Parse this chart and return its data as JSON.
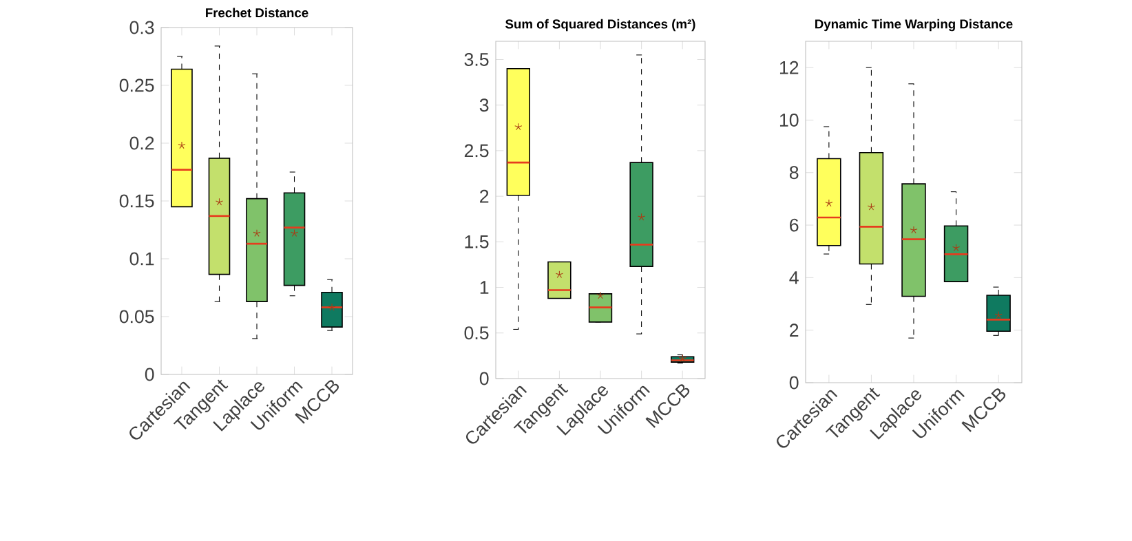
{
  "chart_data": [
    {
      "type": "box",
      "title": "Frechet Distance",
      "categories": [
        "Cartesian",
        "Tangent",
        "Laplace",
        "Uniform",
        "MCCB"
      ],
      "colors": [
        "#ffff5c",
        "#c3e06c",
        "#80c26a",
        "#3d9c62",
        "#0f7a60"
      ],
      "marker": "star",
      "ylim": [
        0,
        0.3
      ],
      "yticks": [
        0,
        0.05,
        0.1,
        0.15,
        0.2,
        0.25,
        0.3
      ],
      "boxes": [
        {
          "low": 0.145,
          "q1": 0.145,
          "median": 0.177,
          "q3": 0.264,
          "high": 0.275,
          "mean": 0.198
        },
        {
          "low": 0.063,
          "q1": 0.0865,
          "median": 0.137,
          "q3": 0.187,
          "high": 0.284,
          "mean": 0.149
        },
        {
          "low": 0.031,
          "q1": 0.063,
          "median": 0.113,
          "q3": 0.152,
          "high": 0.26,
          "mean": 0.122
        },
        {
          "low": 0.068,
          "q1": 0.077,
          "median": 0.127,
          "q3": 0.157,
          "high": 0.175,
          "mean": 0.122
        },
        {
          "low": 0.038,
          "q1": 0.041,
          "median": 0.058,
          "q3": 0.071,
          "high": 0.082,
          "mean": 0.058
        }
      ]
    },
    {
      "type": "box",
      "title": "Sum of Squared Distances (m²)",
      "categories": [
        "Cartesian",
        "Tangent",
        "Laplace",
        "Uniform",
        "MCCB"
      ],
      "colors": [
        "#ffff5c",
        "#c3e06c",
        "#80c26a",
        "#3d9c62",
        "#0f7a60"
      ],
      "marker": "star",
      "ylim": [
        0,
        3.7
      ],
      "yticks": [
        0,
        0.5,
        1,
        1.5,
        2,
        2.5,
        3,
        3.5
      ],
      "boxes": [
        {
          "low": 0.54,
          "q1": 2.01,
          "median": 2.37,
          "q3": 3.4,
          "high": 3.4,
          "mean": 2.76
        },
        {
          "low": 0.88,
          "q1": 0.88,
          "median": 0.97,
          "q3": 1.28,
          "high": 1.28,
          "mean": 1.14
        },
        {
          "low": 0.62,
          "q1": 0.62,
          "median": 0.78,
          "q3": 0.93,
          "high": 0.93,
          "mean": 0.91
        },
        {
          "low": 0.49,
          "q1": 1.23,
          "median": 1.47,
          "q3": 2.37,
          "high": 3.55,
          "mean": 1.77
        },
        {
          "low": 0.17,
          "q1": 0.18,
          "median": 0.2,
          "q3": 0.24,
          "high": 0.26,
          "mean": 0.22
        }
      ]
    },
    {
      "type": "box",
      "title": "Dynamic Time Warping Distance",
      "categories": [
        "Cartesian",
        "Tangent",
        "Laplace",
        "Uniform",
        "MCCB"
      ],
      "colors": [
        "#ffff5c",
        "#c3e06c",
        "#80c26a",
        "#3d9c62",
        "#0f7a60"
      ],
      "marker": "star",
      "ylim": [
        0,
        13
      ],
      "yticks": [
        0,
        2,
        4,
        6,
        8,
        10,
        12
      ],
      "boxes": [
        {
          "low": 4.9,
          "q1": 5.22,
          "median": 6.29,
          "q3": 8.53,
          "high": 9.75,
          "mean": 6.83
        },
        {
          "low": 2.98,
          "q1": 4.52,
          "median": 5.94,
          "q3": 8.76,
          "high": 12.0,
          "mean": 6.69
        },
        {
          "low": 1.7,
          "q1": 3.29,
          "median": 5.46,
          "q3": 7.57,
          "high": 11.38,
          "mean": 5.81
        },
        {
          "low": 3.85,
          "q1": 3.85,
          "median": 4.89,
          "q3": 5.97,
          "high": 7.27,
          "mean": 5.13
        },
        {
          "low": 1.8,
          "q1": 1.96,
          "median": 2.4,
          "q3": 3.33,
          "high": 3.64,
          "mean": 2.57
        }
      ]
    }
  ]
}
